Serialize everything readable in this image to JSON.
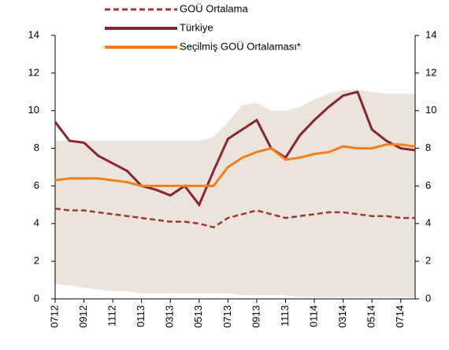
{
  "chart_data": {
    "type": "line",
    "categories": [
      "0712",
      null,
      "0912",
      null,
      "1112",
      null,
      "0113",
      null,
      "0313",
      null,
      "0513",
      null,
      "0713",
      null,
      "0913",
      null,
      "1113",
      null,
      "0114",
      null,
      "0314",
      null,
      "0514",
      null,
      "0714",
      null
    ],
    "band": {
      "color": "#ebe4da",
      "high": [
        8.4,
        8.4,
        8.4,
        8.4,
        8.4,
        8.4,
        8.4,
        8.4,
        8.4,
        8.4,
        8.4,
        8.6,
        9.4,
        10.3,
        10.4,
        10.0,
        10.0,
        10.2,
        10.6,
        10.9,
        11.1,
        11.1,
        11.0,
        10.9,
        10.9,
        10.9
      ],
      "low": [
        0.8,
        0.7,
        0.6,
        0.5,
        0.4,
        0.4,
        0.3,
        0.3,
        0.3,
        0.3,
        0.3,
        0.3,
        0.3,
        0.2,
        0.2,
        0.2,
        0.2,
        0.1,
        0.1,
        0.1,
        0.1,
        0.1,
        0.1,
        0.1,
        0.1,
        0.1
      ]
    },
    "series": [
      {
        "name": "GOÜ Ortalama",
        "color": "#9b3a35",
        "dash": true,
        "values": [
          4.8,
          4.7,
          4.7,
          4.6,
          4.5,
          4.4,
          4.3,
          4.2,
          4.1,
          4.1,
          4.0,
          3.8,
          4.3,
          4.5,
          4.7,
          4.5,
          4.3,
          4.4,
          4.5,
          4.6,
          4.6,
          4.5,
          4.4,
          4.4,
          4.3,
          4.3
        ]
      },
      {
        "name": "Türkiye",
        "color": "#8b2332",
        "dash": false,
        "values": [
          9.4,
          8.4,
          8.3,
          7.6,
          7.2,
          6.8,
          6.0,
          5.8,
          5.5,
          6.0,
          5.0,
          6.8,
          8.5,
          9.0,
          9.5,
          8.0,
          7.5,
          8.7,
          9.5,
          10.2,
          10.8,
          11.0,
          9.0,
          8.4,
          8.0,
          7.9
        ]
      },
      {
        "name": "Seçilmiş GOÜ Ortalaması*",
        "color": "#f07f1e",
        "dash": false,
        "values": [
          6.3,
          6.4,
          6.4,
          6.4,
          6.3,
          6.2,
          6.0,
          6.0,
          6.0,
          6.0,
          6.0,
          6.0,
          7.0,
          7.5,
          7.8,
          8.0,
          7.4,
          7.5,
          7.7,
          7.8,
          8.1,
          8.0,
          8.0,
          8.2,
          8.2,
          8.1
        ]
      }
    ],
    "ylim": [
      0,
      14
    ],
    "yticks": [
      0,
      2,
      4,
      6,
      8,
      10,
      12,
      14
    ],
    "y2lim": [
      0,
      14
    ],
    "y2ticks": [
      0,
      2,
      4,
      6,
      8,
      10,
      12,
      14
    ]
  }
}
